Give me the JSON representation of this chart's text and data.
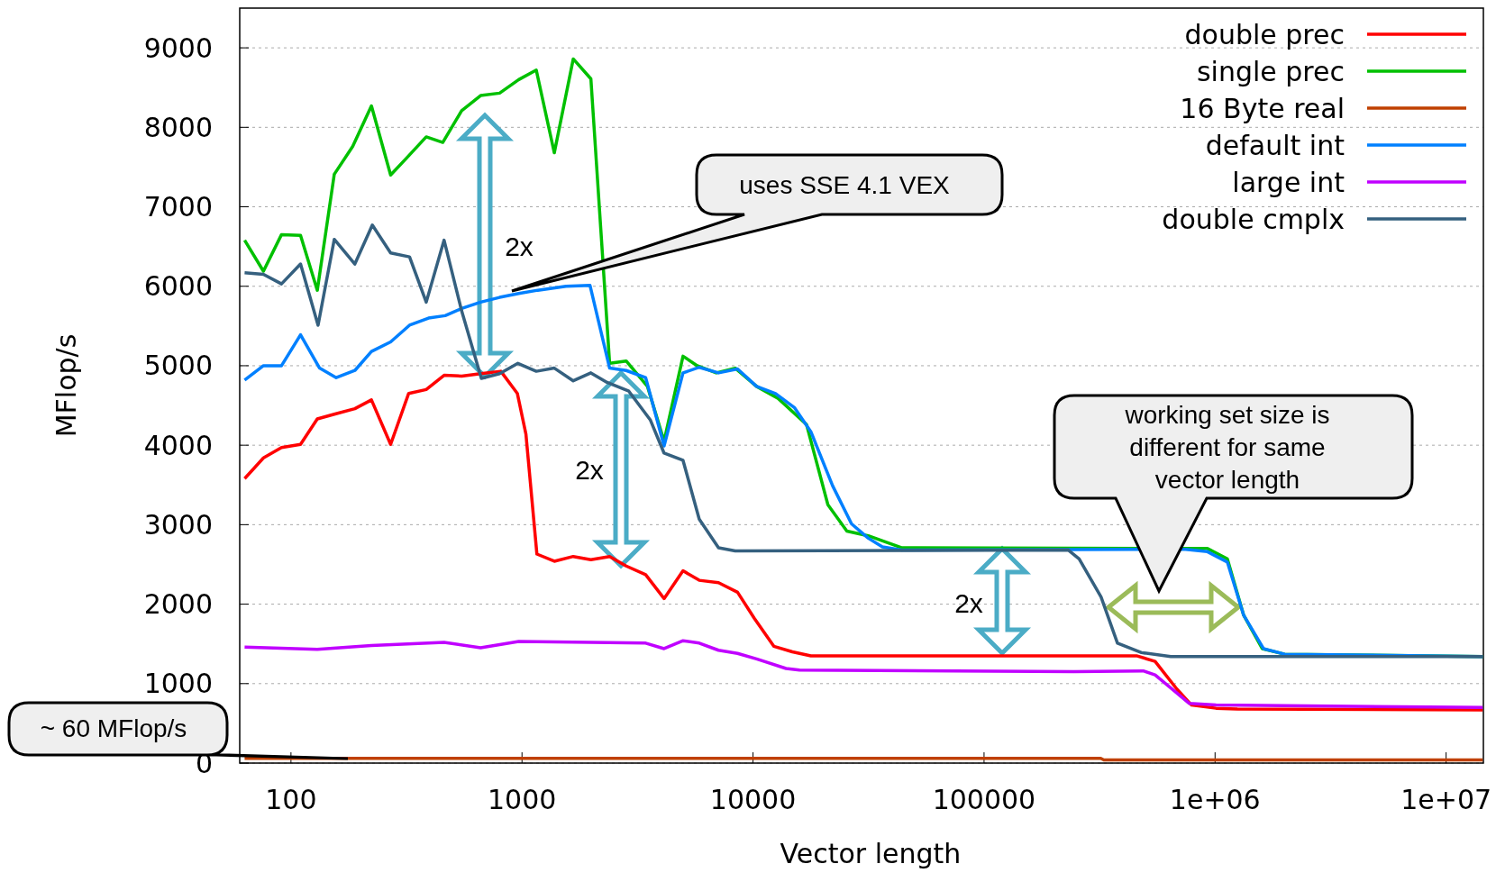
{
  "chart_data": {
    "type": "line",
    "xlabel": "Vector length",
    "ylabel": "MFlop/s",
    "log": "x",
    "xlim": [
      60,
      14500000
    ],
    "ylim": [
      0,
      9500
    ],
    "xticks": [
      100,
      1000,
      10000,
      100000,
      {
        "value": 1000000,
        "label": "1e+06"
      },
      {
        "value": 10000000,
        "label": "1e+07"
      }
    ],
    "yticks": [
      0,
      1000,
      2000,
      3000,
      4000,
      5000,
      6000,
      7000,
      8000,
      9000
    ],
    "grid": "y",
    "legend": "top right",
    "line_style": "solid",
    "annotations": [
      "uses SSE 4.1 VEX",
      "2x",
      "2x",
      "2x",
      "working set size is different for same vector length",
      "~ 60 MFlop/s"
    ],
    "series": [
      {
        "name": "double prec",
        "color": "#ff0000",
        "x": [
          63,
          76,
          91,
          110,
          130,
          154,
          189,
          223,
          270,
          323,
          385,
          460,
          548,
          662,
          810,
          955,
          1040,
          1160,
          1380,
          1667,
          1987,
          2395,
          2825,
          3430,
          4121,
          4977,
          5850,
          7090,
          8570,
          10140,
          12300,
          14800,
          17800,
          457000,
          550000,
          684000,
          791000,
          1010000,
          1250000,
          14400000
        ],
        "values": [
          3580,
          3840,
          3970,
          4010,
          4330,
          4390,
          4460,
          4570,
          4010,
          4650,
          4700,
          4880,
          4870,
          4900,
          4930,
          4650,
          4140,
          2630,
          2540,
          2600,
          2560,
          2600,
          2480,
          2370,
          2070,
          2420,
          2300,
          2270,
          2150,
          1820,
          1470,
          1400,
          1350,
          1350,
          1280,
          930,
          730,
          690,
          680,
          670
        ]
      },
      {
        "name": "single prec",
        "color": "#00c000",
        "x": [
          63,
          76,
          91,
          110,
          130,
          154,
          185,
          223,
          270,
          318,
          385,
          454,
          548,
          662,
          800,
          968,
          1153,
          1380,
          1667,
          1987,
          2395,
          2825,
          3492,
          4121,
          4977,
          5733,
          6932,
          8376,
          10360,
          12830,
          17050,
          21090,
          25480,
          31540,
          43890,
          927000,
          1130000,
          1330000,
          1600000,
          2000000,
          14400000
        ],
        "values": [
          6580,
          6190,
          6650,
          6640,
          5950,
          7410,
          7760,
          8270,
          7400,
          7620,
          7880,
          7810,
          8210,
          8400,
          8430,
          8600,
          8720,
          7680,
          8860,
          8610,
          5030,
          5060,
          4740,
          4050,
          5120,
          5000,
          4910,
          4970,
          4740,
          4590,
          4260,
          3250,
          2920,
          2860,
          2710,
          2700,
          2570,
          1860,
          1440,
          1370,
          1340
        ]
      },
      {
        "name": "16 Byte real",
        "color": "#c04000",
        "x": [
          63,
          320000,
          330000,
          14400000
        ],
        "values": [
          60,
          60,
          40,
          40
        ]
      },
      {
        "name": "default int",
        "color": "#0080ff",
        "x": [
          63,
          76,
          91,
          110,
          133,
          157,
          189,
          223,
          270,
          326,
          394,
          465,
          548,
          662,
          800,
          968,
          1170,
          1550,
          1970,
          2395,
          2825,
          3430,
          4121,
          4977,
          5850,
          7090,
          8570,
          10360,
          12520,
          15140,
          17800,
          22100,
          26700,
          31540,
          36300,
          43890,
          745000,
          927000,
          1130000,
          1330000,
          1620000,
          2000000,
          14400000
        ],
        "values": [
          4820,
          5000,
          5000,
          5390,
          4970,
          4850,
          4940,
          5180,
          5300,
          5510,
          5600,
          5630,
          5720,
          5800,
          5860,
          5910,
          5950,
          6000,
          6010,
          4970,
          4940,
          4850,
          3990,
          4910,
          4980,
          4910,
          4960,
          4740,
          4650,
          4470,
          4170,
          3490,
          3010,
          2830,
          2720,
          2680,
          2690,
          2660,
          2530,
          1860,
          1440,
          1370,
          1340
        ]
      },
      {
        "name": "large int",
        "color": "#c000ff",
        "x": [
          63,
          130,
          223,
          460,
          662,
          968,
          3430,
          4121,
          4977,
          5850,
          7090,
          8570,
          10360,
          13900,
          15900,
          245000,
          489000,
          550000,
          774000,
          1010000,
          14400000
        ],
        "values": [
          1460,
          1430,
          1480,
          1520,
          1450,
          1530,
          1510,
          1440,
          1540,
          1510,
          1420,
          1380,
          1310,
          1190,
          1170,
          1150,
          1160,
          1110,
          750,
          730,
          700
        ]
      },
      {
        "name": "double cmplx",
        "color": "#35607f",
        "x": [
          63,
          76,
          91,
          110,
          131,
          154,
          189,
          225,
          270,
          326,
          385,
          460,
          548,
          667,
          800,
          960,
          1153,
          1380,
          1667,
          1987,
          2334,
          2900,
          3590,
          4121,
          4977,
          5850,
          7090,
          8376,
          231700,
          258000,
          321000,
          378000,
          480000,
          643000,
          14400000
        ],
        "values": [
          6170,
          6150,
          6030,
          6280,
          5510,
          6590,
          6280,
          6770,
          6420,
          6370,
          5800,
          6580,
          5690,
          4840,
          4900,
          5030,
          4930,
          4970,
          4810,
          4910,
          4790,
          4680,
          4320,
          3900,
          3810,
          3070,
          2710,
          2670,
          2680,
          2570,
          2090,
          1510,
          1390,
          1340,
          1340
        ]
      }
    ]
  }
}
